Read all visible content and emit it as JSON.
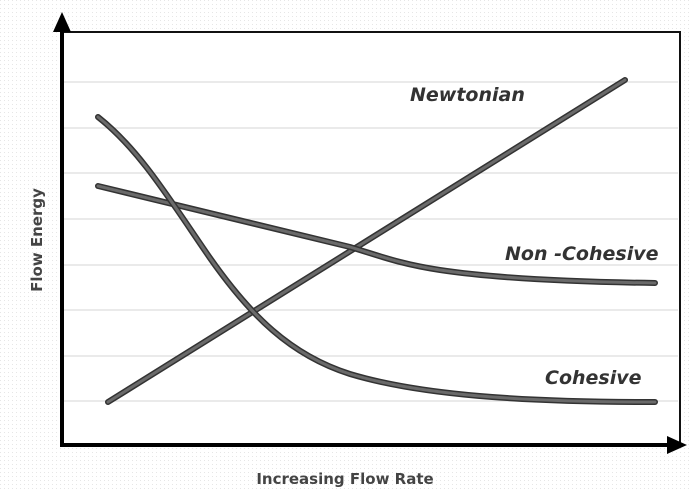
{
  "axes": {
    "x_label": "Increasing Flow Rate",
    "y_label": "Flow Energy"
  },
  "curves": [
    {
      "label": "Newtonian"
    },
    {
      "label": "Non -Cohesive"
    },
    {
      "label": "Cohesive"
    }
  ]
}
